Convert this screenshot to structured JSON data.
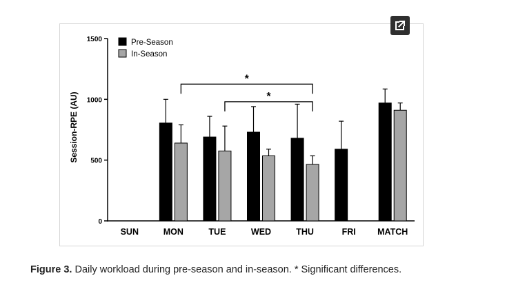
{
  "open_button": {
    "icon": "external-link-icon"
  },
  "caption": {
    "label": "Figure 3.",
    "text": "Daily workload during pre-season and in-season. * Significant differences."
  },
  "chart_data": {
    "type": "bar",
    "ylabel": "Session-RPE (AU)",
    "xlabel": "",
    "ylim": [
      0,
      1500
    ],
    "yticks": [
      0,
      500,
      1000,
      1500
    ],
    "categories": [
      "SUN",
      "MON",
      "TUE",
      "WED",
      "THU",
      "FRI",
      "MATCH"
    ],
    "series": [
      {
        "name": "Pre-Season",
        "color": "#000000",
        "values": [
          null,
          805,
          690,
          730,
          680,
          590,
          970
        ],
        "errors": [
          null,
          195,
          170,
          210,
          280,
          230,
          115
        ]
      },
      {
        "name": "In-Season",
        "color": "#a6a6a6",
        "values": [
          null,
          640,
          575,
          535,
          465,
          null,
          910
        ],
        "errors": [
          null,
          150,
          205,
          55,
          70,
          null,
          60
        ]
      }
    ],
    "legend": "top-left",
    "grid": false,
    "annotations": [
      {
        "text": "*",
        "from": "MON",
        "to": "THU",
        "series": "In-Season",
        "y": 1125
      },
      {
        "text": "*",
        "from": "TUE",
        "to": "THU",
        "series": "In-Season",
        "y": 980
      }
    ]
  }
}
